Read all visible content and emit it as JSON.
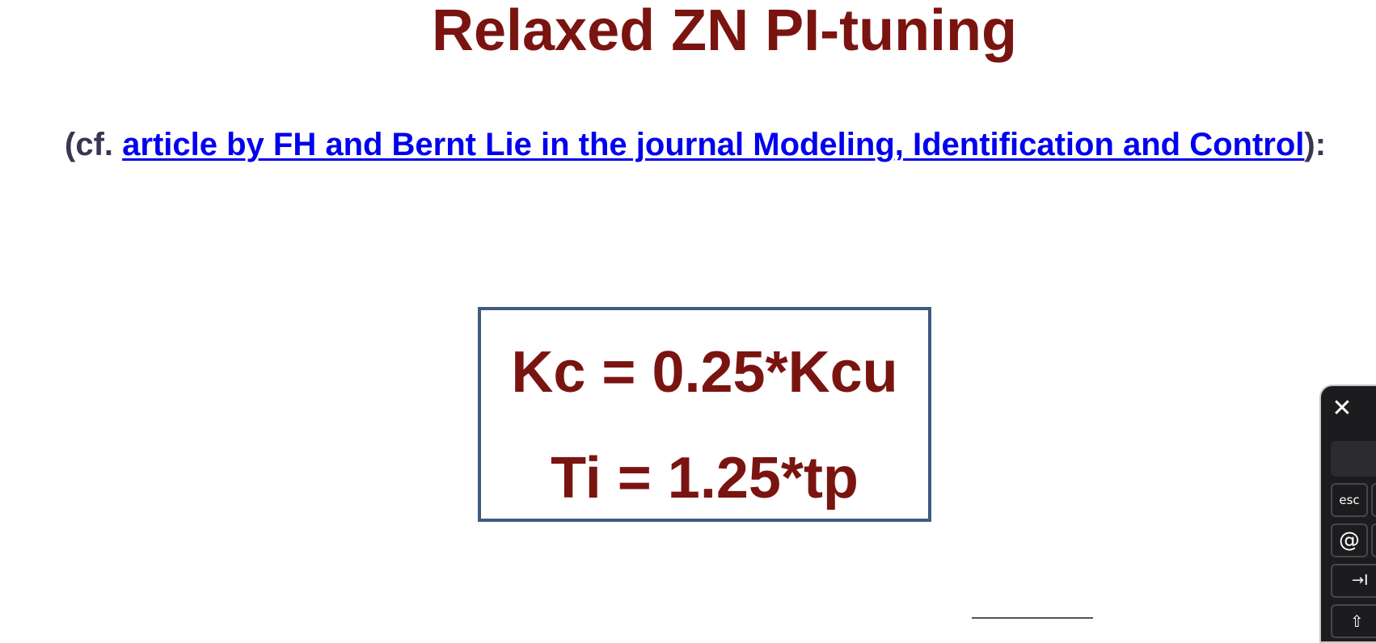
{
  "slide": {
    "title": "Relaxed ZN PI-tuning",
    "reference": {
      "prefix": "(cf. ",
      "link_text": "article by FH and Bernt Lie in the journal Modeling, Identification and Control",
      "suffix": "):"
    },
    "formulas": {
      "kc": "Kc = 0.25*Kcu",
      "ti": "Ti = 1.25*tp"
    }
  },
  "keyboard": {
    "close_icon": "close-icon",
    "keys": {
      "esc": "esc",
      "at": "@",
      "tab": "→I",
      "shift": "⇧"
    }
  }
}
